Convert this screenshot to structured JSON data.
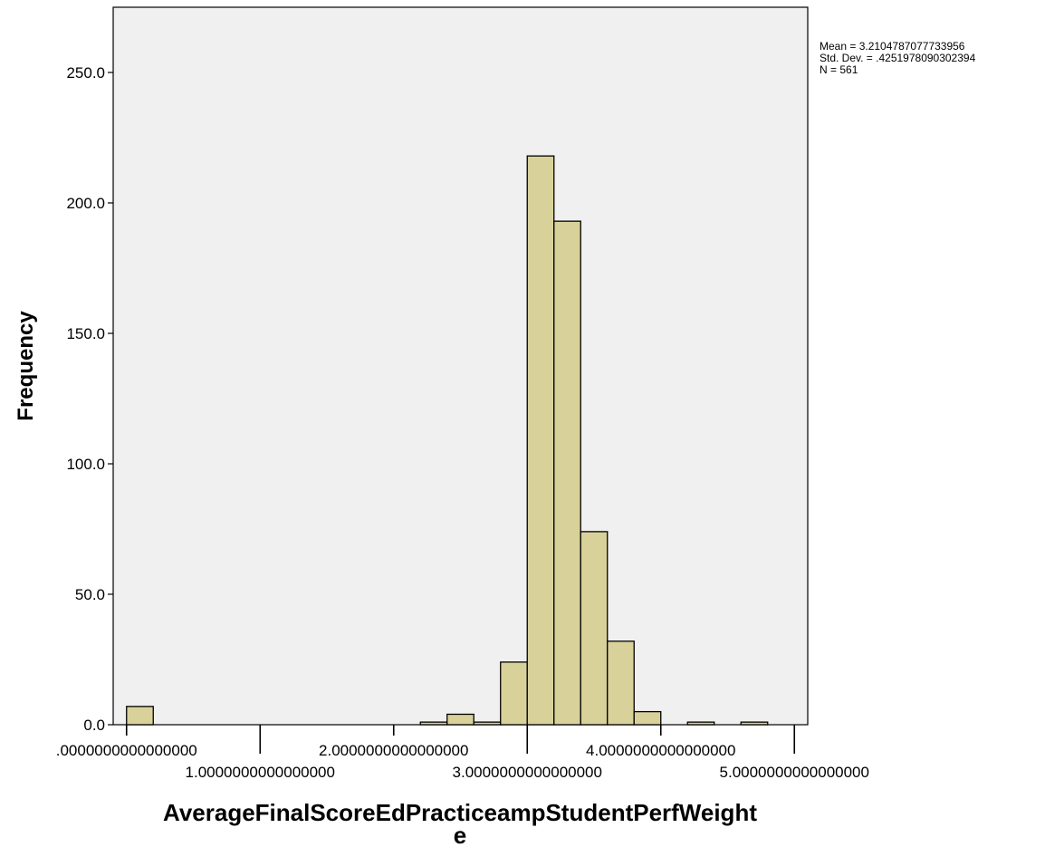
{
  "chart_data": {
    "type": "bar",
    "subtype": "histogram",
    "xlabel_lines": [
      "AverageFinalScoreEdPracticeampStudentPerfWeight",
      "e"
    ],
    "ylabel": "Frequency",
    "ylim": [
      0,
      275
    ],
    "yticks": [
      0,
      50,
      100,
      150,
      200,
      250
    ],
    "ytick_labels": [
      "0.0",
      "50.0",
      "100.0",
      "150.0",
      "200.0",
      "250.0"
    ],
    "xlim": [
      -0.1,
      5.1
    ],
    "xticks": [
      0,
      1,
      2,
      3,
      4,
      5
    ],
    "xtick_labels": [
      ".0000000000000000",
      "1.0000000000000000",
      "2.0000000000000000",
      "3.0000000000000000",
      "4.0000000000000000",
      "5.0000000000000000"
    ],
    "bin_width": 0.2,
    "bins": [
      {
        "start": 0.0,
        "end": 0.2,
        "count": 7
      },
      {
        "start": 2.2,
        "end": 2.4,
        "count": 1
      },
      {
        "start": 2.4,
        "end": 2.6,
        "count": 4
      },
      {
        "start": 2.6,
        "end": 2.8,
        "count": 1
      },
      {
        "start": 2.8,
        "end": 3.0,
        "count": 24
      },
      {
        "start": 3.0,
        "end": 3.2,
        "count": 218
      },
      {
        "start": 3.2,
        "end": 3.4,
        "count": 193
      },
      {
        "start": 3.4,
        "end": 3.6,
        "count": 74
      },
      {
        "start": 3.6,
        "end": 3.8,
        "count": 32
      },
      {
        "start": 3.8,
        "end": 4.0,
        "count": 5
      },
      {
        "start": 4.2,
        "end": 4.4,
        "count": 1
      },
      {
        "start": 4.6,
        "end": 4.8,
        "count": 1
      }
    ],
    "stats": {
      "mean": "Mean = 3.2104787077733956",
      "std_dev": "Std. Dev. = .4251978090302394",
      "n": "N = 561"
    },
    "grid": false,
    "colors": {
      "plot_background": "#f0f0f0",
      "bar_fill": "#d8d29a",
      "bar_stroke": "#000000",
      "page_background": "#ffffff"
    }
  }
}
